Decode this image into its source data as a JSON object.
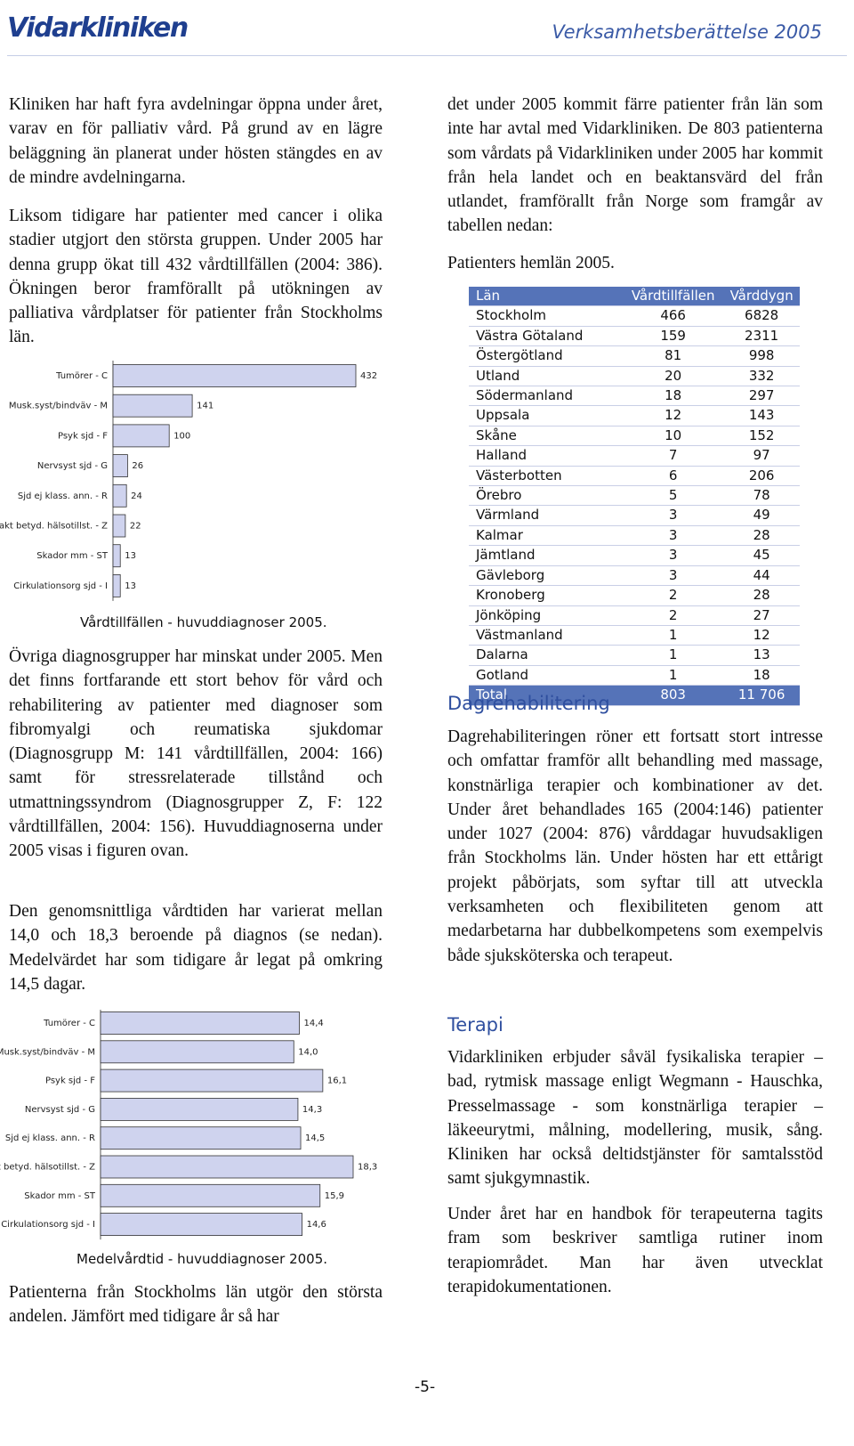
{
  "header": {
    "logo": "Vidarkliniken",
    "title": "Verksamhetsberättelse 2005"
  },
  "left": {
    "paragraphs": [
      "Kliniken har haft fyra avdelningar öppna under året, varav en för palliativ vård. På grund av en lägre beläggning än planerat under hösten stängdes en av de mindre avdelningarna.",
      "Liksom tidigare har patienter med cancer i olika stadier utgjort den största gruppen. Under 2005 har denna grupp ökat till 432 vårdtillfällen (2004: 386). Ökningen beror framförallt på utökningen av palliativa vårdplatser för patienter från Stockholms län.",
      "Övriga diagnosgrupper har minskat under 2005. Men det finns fortfarande ett stort behov för vård och rehabilitering av patienter med diagnoser som fibromyalgi och reumatiska sjukdomar (Diagnosgrupp M: 141 vårdtillfällen, 2004: 166) samt för stressrelaterade tillstånd och utmattningssyndrom (Diagnosgrupper Z, F: 122 vårdtillfällen, 2004: 156). Huvuddiagnoserna under 2005 visas i figuren ovan.",
      "Den genomsnittliga vårdtiden har varierat mellan 14,0 och 18,3 beroende på diagnos (se nedan). Medelvärdet har som tidigare år legat på omkring 14,5 dagar.",
      "Patienterna från Stockholms län utgör den största andelen. Jämfört med tidigare år så har"
    ]
  },
  "chart_data": [
    {
      "type": "bar",
      "orientation": "horizontal",
      "title": "Vårdtillfällen - huvuddiagnoser 2005.",
      "categories": [
        "Tumörer - C",
        "Musk.syst/bindväv - M",
        "Psyk sjd - F",
        "Nervsyst sjd - G",
        "Sjd ej klass. ann.  - R",
        "Fakt betyd. hälsotillst. - Z",
        "Skador mm - ST",
        "Cirkulationsorg sjd - I"
      ],
      "values": [
        432,
        141,
        100,
        26,
        24,
        22,
        13,
        13
      ],
      "color": "#cfd3ee"
    },
    {
      "type": "bar",
      "orientation": "horizontal",
      "title": "Medelvårdtid - huvuddiagnoser 2005.",
      "categories": [
        "Tumörer - C",
        "Musk.syst/bindväv - M",
        "Psyk sjd - F",
        "Nervsyst sjd - G",
        "Sjd ej klass. ann.  - R",
        "Fakt betyd. hälsotillst. - Z",
        "Skador mm - ST",
        "Cirkulationsorg sjd - I"
      ],
      "values": [
        14.4,
        14.0,
        16.1,
        14.3,
        14.5,
        18.3,
        15.9,
        14.6
      ],
      "value_labels": [
        "14,4",
        "14,0",
        "16,1",
        "14,3",
        "14,5",
        "18,3",
        "15,9",
        "14,6"
      ],
      "color": "#cfd3ee"
    }
  ],
  "right": {
    "paragraphs": [
      "det under 2005 kommit färre patienter från län som inte har avtal med Vidarkliniken. De 803 patienterna som vårdats på Vidarkliniken under 2005 har kommit från hela landet och en beaktansvärd del från utlandet, framförallt från Norge som framgår av tabellen nedan:"
    ],
    "table_caption": "Patienters hemlän 2005.",
    "table": {
      "header": [
        "Län",
        "Vårdtillfällen",
        "Vårddygn"
      ],
      "rows": [
        [
          "Stockholm",
          "466",
          "6828"
        ],
        [
          "Västra Götaland",
          "159",
          "2311"
        ],
        [
          "Östergötland",
          "81",
          "998"
        ],
        [
          "Utland",
          "20",
          "332"
        ],
        [
          "Södermanland",
          "18",
          "297"
        ],
        [
          "Uppsala",
          "12",
          "143"
        ],
        [
          "Skåne",
          "10",
          "152"
        ],
        [
          "Halland",
          "7",
          "97"
        ],
        [
          "Västerbotten",
          "6",
          "206"
        ],
        [
          "Örebro",
          "5",
          "78"
        ],
        [
          "Värmland",
          "3",
          "49"
        ],
        [
          "Kalmar",
          "3",
          "28"
        ],
        [
          "Jämtland",
          "3",
          "45"
        ],
        [
          "Gävleborg",
          "3",
          "44"
        ],
        [
          "Kronoberg",
          "2",
          "28"
        ],
        [
          "Jönköping",
          "2",
          "27"
        ],
        [
          "Västmanland",
          "1",
          "12"
        ],
        [
          "Dalarna",
          "1",
          "13"
        ],
        [
          "Gotland",
          "1",
          "18"
        ]
      ],
      "total": [
        "Total",
        "803",
        "11 706"
      ]
    },
    "sections": [
      {
        "heading": "Dagrehabilitering",
        "paragraphs": [
          "Dagrehabiliteringen röner ett fortsatt stort intresse och omfattar framför allt behandling med massage, konstnärliga terapier och kombinationer av det. Under året behandlades 165 (2004:146) patienter under 1027 (2004: 876) vårddagar huvudsakligen från Stockholms län. Under hösten har ett ettårigt projekt påbörjats, som syftar till att utveckla verksamheten och flexibiliteten genom att medarbetarna har dubbelkompetens som exempelvis både sjuksköterska och terapeut."
        ]
      },
      {
        "heading": "Terapi",
        "paragraphs": [
          "Vidarkliniken erbjuder såväl fysikaliska terapier – bad, rytmisk massage enligt Wegmann - Hauschka, Presselmassage - som konstnärliga terapier – läkeeurytmi, målning, modellering, musik, sång. Kliniken har också deltidstjänster för samtalsstöd samt sjukgymnastik.",
          "Under året har en handbok för terapeuterna tagits fram som beskriver samtliga rutiner inom terapiområdet. Man har även utvecklat terapidokumentationen."
        ]
      }
    ]
  },
  "footer": {
    "page": "-5-"
  }
}
